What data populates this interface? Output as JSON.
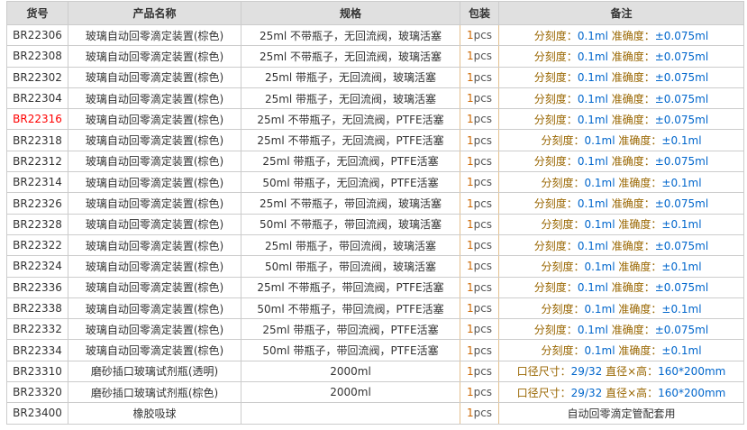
{
  "colors": {
    "header_bg": "#e0e0e0",
    "grid_border": "#cccccc",
    "pack_column_border": "#e3c08f",
    "remark_label": "#996600",
    "remark_value": "#0066cc",
    "highlight_code": "#ff0000",
    "pack_qty": "#cc6600"
  },
  "table": {
    "headers": [
      "货号",
      "产品名称",
      "规格",
      "包装",
      "备注"
    ],
    "rows": [
      {
        "code": "BR22306",
        "highlight": false,
        "name": "玻璃自动回零滴定装置(棕色)",
        "spec": "25ml 不带瓶子，无回流阀，玻璃活塞",
        "pack_qty": "1",
        "pack_unit": "pcs",
        "remark": [
          [
            "分刻度：",
            "label"
          ],
          [
            "0.1ml ",
            "value"
          ],
          [
            "准确度：",
            "label"
          ],
          [
            "±0.075ml",
            "value"
          ]
        ]
      },
      {
        "code": "BR22308",
        "highlight": false,
        "name": "玻璃自动回零滴定装置(棕色)",
        "spec": "25ml 不带瓶子，无回流阀，玻璃活塞",
        "pack_qty": "1",
        "pack_unit": "pcs",
        "remark": [
          [
            "分刻度：",
            "label"
          ],
          [
            "0.1ml ",
            "value"
          ],
          [
            "准确度：",
            "label"
          ],
          [
            "±0.075ml",
            "value"
          ]
        ]
      },
      {
        "code": "BR22302",
        "highlight": false,
        "name": "玻璃自动回零滴定装置(棕色)",
        "spec": "25ml 带瓶子，无回流阀，玻璃活塞",
        "pack_qty": "1",
        "pack_unit": "pcs",
        "remark": [
          [
            "分刻度：",
            "label"
          ],
          [
            "0.1ml ",
            "value"
          ],
          [
            "准确度：",
            "label"
          ],
          [
            "±0.075ml",
            "value"
          ]
        ]
      },
      {
        "code": "BR22304",
        "highlight": false,
        "name": "玻璃自动回零滴定装置(棕色)",
        "spec": "25ml 带瓶子，无回流阀，玻璃活塞",
        "pack_qty": "1",
        "pack_unit": "pcs",
        "remark": [
          [
            "分刻度：",
            "label"
          ],
          [
            "0.1ml ",
            "value"
          ],
          [
            "准确度：",
            "label"
          ],
          [
            "±0.075ml",
            "value"
          ]
        ]
      },
      {
        "code": "BR22316",
        "highlight": true,
        "name": "玻璃自动回零滴定装置(棕色)",
        "spec": "25ml 不带瓶子，无回流阀，PTFE活塞",
        "pack_qty": "1",
        "pack_unit": "pcs",
        "remark": [
          [
            "分刻度：",
            "label"
          ],
          [
            "0.1ml ",
            "value"
          ],
          [
            "准确度：",
            "label"
          ],
          [
            "±0.075ml",
            "value"
          ]
        ]
      },
      {
        "code": "BR22318",
        "highlight": false,
        "name": "玻璃自动回零滴定装置(棕色)",
        "spec": "25ml 不带瓶子，无回流阀，PTFE活塞",
        "pack_qty": "1",
        "pack_unit": "pcs",
        "remark": [
          [
            "分刻度：",
            "label"
          ],
          [
            "0.1ml ",
            "value"
          ],
          [
            "准确度：",
            "label"
          ],
          [
            "±0.1ml",
            "value"
          ]
        ]
      },
      {
        "code": "BR22312",
        "highlight": false,
        "name": "玻璃自动回零滴定装置(棕色)",
        "spec": "25ml 带瓶子，无回流阀，PTFE活塞",
        "pack_qty": "1",
        "pack_unit": "pcs",
        "remark": [
          [
            "分刻度：",
            "label"
          ],
          [
            "0.1ml ",
            "value"
          ],
          [
            "准确度：",
            "label"
          ],
          [
            "±0.075ml",
            "value"
          ]
        ]
      },
      {
        "code": "BR22314",
        "highlight": false,
        "name": "玻璃自动回零滴定装置(棕色)",
        "spec": "50ml 带瓶子，无回流阀，PTFE活塞",
        "pack_qty": "1",
        "pack_unit": "pcs",
        "remark": [
          [
            "分刻度：",
            "label"
          ],
          [
            "0.1ml ",
            "value"
          ],
          [
            "准确度：",
            "label"
          ],
          [
            "±0.1ml",
            "value"
          ]
        ]
      },
      {
        "code": "BR22326",
        "highlight": false,
        "name": "玻璃自动回零滴定装置(棕色)",
        "spec": "25ml 不带瓶子，带回流阀，玻璃活塞",
        "pack_qty": "1",
        "pack_unit": "pcs",
        "remark": [
          [
            "分刻度：",
            "label"
          ],
          [
            "0.1ml ",
            "value"
          ],
          [
            "准确度：",
            "label"
          ],
          [
            "±0.075ml",
            "value"
          ]
        ]
      },
      {
        "code": "BR22328",
        "highlight": false,
        "name": "玻璃自动回零滴定装置(棕色)",
        "spec": "50ml 不带瓶子，带回流阀，玻璃活塞",
        "pack_qty": "1",
        "pack_unit": "pcs",
        "remark": [
          [
            "分刻度：",
            "label"
          ],
          [
            "0.1ml ",
            "value"
          ],
          [
            "准确度：",
            "label"
          ],
          [
            "±0.1ml",
            "value"
          ]
        ]
      },
      {
        "code": "BR22322",
        "highlight": false,
        "name": "玻璃自动回零滴定装置(棕色)",
        "spec": "25ml 带瓶子，带回流阀，玻璃活塞",
        "pack_qty": "1",
        "pack_unit": "pcs",
        "remark": [
          [
            "分刻度：",
            "label"
          ],
          [
            "0.1ml ",
            "value"
          ],
          [
            "准确度：",
            "label"
          ],
          [
            "±0.075ml",
            "value"
          ]
        ]
      },
      {
        "code": "BR22324",
        "highlight": false,
        "name": "玻璃自动回零滴定装置(棕色)",
        "spec": "50ml 带瓶子，带回流阀，玻璃活塞",
        "pack_qty": "1",
        "pack_unit": "pcs",
        "remark": [
          [
            "分刻度：",
            "label"
          ],
          [
            "0.1ml ",
            "value"
          ],
          [
            "准确度：",
            "label"
          ],
          [
            "±0.1ml",
            "value"
          ]
        ]
      },
      {
        "code": "BR22336",
        "highlight": false,
        "name": "玻璃自动回零滴定装置(棕色)",
        "spec": "25ml 不带瓶子，带回流阀，PTFE活塞",
        "pack_qty": "1",
        "pack_unit": "pcs",
        "remark": [
          [
            "分刻度：",
            "label"
          ],
          [
            "0.1ml ",
            "value"
          ],
          [
            "准确度：",
            "label"
          ],
          [
            "±0.075ml",
            "value"
          ]
        ]
      },
      {
        "code": "BR22338",
        "highlight": false,
        "name": "玻璃自动回零滴定装置(棕色)",
        "spec": "50ml 不带瓶子，带回流阀，PTFE活塞",
        "pack_qty": "1",
        "pack_unit": "pcs",
        "remark": [
          [
            "分刻度：",
            "label"
          ],
          [
            "0.1ml ",
            "value"
          ],
          [
            "准确度：",
            "label"
          ],
          [
            "±0.1ml",
            "value"
          ]
        ]
      },
      {
        "code": "BR22332",
        "highlight": false,
        "name": "玻璃自动回零滴定装置(棕色)",
        "spec": "25ml 带瓶子，带回流阀，PTFE活塞",
        "pack_qty": "1",
        "pack_unit": "pcs",
        "remark": [
          [
            "分刻度：",
            "label"
          ],
          [
            "0.1ml ",
            "value"
          ],
          [
            "准确度：",
            "label"
          ],
          [
            "±0.075ml",
            "value"
          ]
        ]
      },
      {
        "code": "BR22334",
        "highlight": false,
        "name": "玻璃自动回零滴定装置(棕色)",
        "spec": "50ml 带瓶子，带回流阀，PTFE活塞",
        "pack_qty": "1",
        "pack_unit": "pcs",
        "remark": [
          [
            "分刻度：",
            "label"
          ],
          [
            "0.1ml ",
            "value"
          ],
          [
            "准确度：",
            "label"
          ],
          [
            "±0.1ml",
            "value"
          ]
        ]
      },
      {
        "code": "BR23310",
        "highlight": false,
        "name": "磨砂插口玻璃试剂瓶(透明)",
        "spec": "2000ml",
        "pack_qty": "1",
        "pack_unit": "pcs",
        "remark": [
          [
            "口径尺寸：",
            "label"
          ],
          [
            "29/32 ",
            "value"
          ],
          [
            "直径×高：",
            "label"
          ],
          [
            "160*200mm",
            "value"
          ]
        ]
      },
      {
        "code": "BR23320",
        "highlight": false,
        "name": "磨砂插口玻璃试剂瓶(棕色)",
        "spec": "2000ml",
        "pack_qty": "1",
        "pack_unit": "pcs",
        "remark": [
          [
            "口径尺寸：",
            "label"
          ],
          [
            "29/32 ",
            "value"
          ],
          [
            "直径×高：",
            "label"
          ],
          [
            "160*200mm",
            "value"
          ]
        ]
      },
      {
        "code": "BR23400",
        "highlight": false,
        "name": "橡胶吸球",
        "spec": "",
        "pack_qty": "1",
        "pack_unit": "pcs",
        "remark": [
          [
            "自动回零滴定管配套用",
            "plain"
          ]
        ]
      }
    ]
  }
}
